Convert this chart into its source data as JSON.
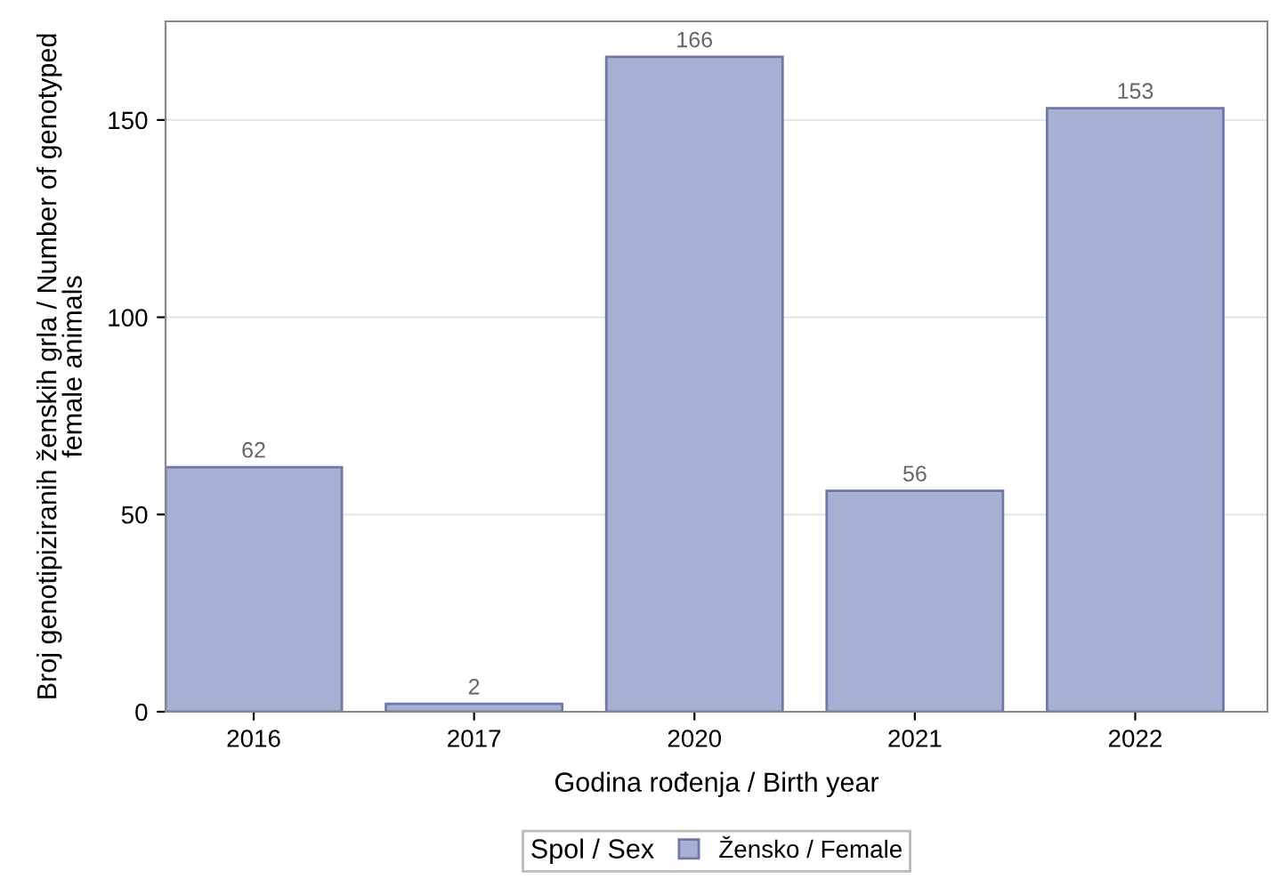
{
  "chart_data": {
    "type": "bar",
    "xlabel": "Godina rođenja / Birth year",
    "ylabel": "Broj genotipiziranih ženskih grla / Number of genotyped\nfemale animals",
    "categories": [
      "2016",
      "2017",
      "2020",
      "2021",
      "2022"
    ],
    "series": [
      {
        "name": "Žensko / Female",
        "color": "#a7afd3",
        "values": [
          62,
          2,
          166,
          56,
          153
        ]
      }
    ],
    "legend_title": "Spol / Sex",
    "legend": "bottom",
    "data_labels": true,
    "ylim": [
      0,
      175
    ],
    "yticks": [
      0,
      50,
      100,
      150
    ],
    "grid": "y"
  }
}
